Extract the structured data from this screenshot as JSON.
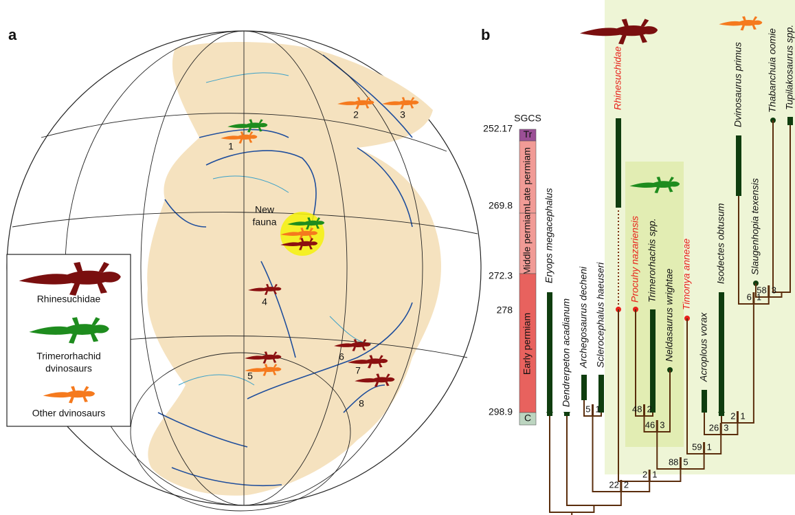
{
  "panel_a": {
    "label": "a",
    "map_labels": [
      "1",
      "2",
      "3",
      "4",
      "5",
      "6",
      "7",
      "8"
    ],
    "new_fauna": [
      "New",
      "fauna"
    ],
    "legend": [
      [
        "Rhinesuchidae"
      ],
      [
        "Trimerorhachid",
        "dvinosaurs"
      ],
      [
        "Other dvinosaurs"
      ]
    ]
  },
  "panel_b": {
    "label": "b",
    "scale_title": "SGCS",
    "ages": [
      252.17,
      269.8,
      272.3,
      278,
      298.9
    ],
    "periods": [
      "Tr",
      "Late permiam",
      "Middle permiam",
      "Early permiam",
      "C"
    ],
    "taxa": [
      "Eryops megacephalus",
      "Dendrerpeton acadianum",
      "Archegosaurus decheni",
      "Sclerocephalus haeuseri",
      "Rhinesuchidae",
      "Procuhy nazariensis",
      "Trimerorhachis spp.",
      "Neldasaurus wrightae",
      "Timonya anneae",
      "Acroplous vorax",
      "Isodectes obtusum",
      "Dvinosaurus primus",
      "Slaugenhopia texensis",
      "Thabanchuia oomie",
      "Tupilakosaurus spp."
    ],
    "supports": [
      [
        5,
        1
      ],
      [
        48,
        2
      ],
      [
        46,
        3
      ],
      [
        58,
        3
      ],
      [
        6,
        1
      ],
      [
        2,
        1
      ],
      [
        26,
        3
      ],
      [
        59,
        1
      ],
      [
        88,
        5
      ],
      [
        2,
        1
      ],
      [
        22,
        2
      ]
    ]
  }
}
